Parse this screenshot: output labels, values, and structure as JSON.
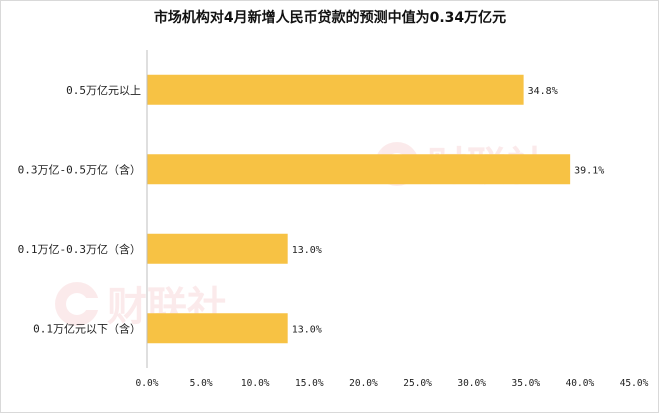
{
  "chart_data": {
    "type": "bar",
    "orientation": "horizontal",
    "title": "市场机构对4月新增人民币贷款的预测中值为0.34万亿元",
    "categories": [
      "0.5万亿元以上",
      "0.3万亿-0.5万亿（含）",
      "0.1万亿-0.3万亿（含）",
      "0.1万亿元以下（含）"
    ],
    "values": [
      34.8,
      39.1,
      13.0,
      13.0
    ],
    "data_labels": [
      "34.8%",
      "39.1%",
      "13.0%",
      "13.0%"
    ],
    "xlim": [
      0,
      45
    ],
    "x_ticks": [
      "0.0%",
      "5.0%",
      "10.0%",
      "15.0%",
      "20.0%",
      "25.0%",
      "30.0%",
      "35.0%",
      "40.0%",
      "45.0%"
    ],
    "xlabel": "",
    "ylabel": "",
    "grid": false,
    "legend": "none",
    "bar_color": "#F7C244",
    "watermark": "财联社"
  }
}
